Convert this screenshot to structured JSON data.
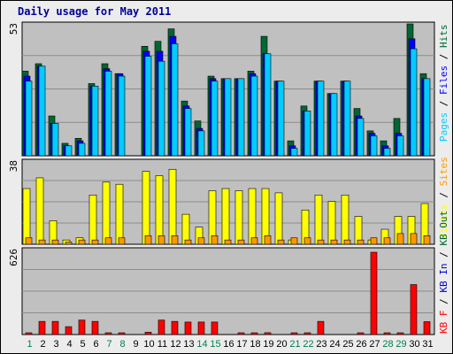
{
  "title": "Daily usage for May 2011",
  "colors": {
    "pages": "#00ccff",
    "files": "#0000ff",
    "hits": "#006633",
    "visits": "#ffff00",
    "sites": "#ff9900",
    "kb_f": "#ff0000",
    "kb_in": "#0000cc",
    "kb_out": "#006633",
    "weekend_day": "#00804d",
    "weekday": "#000000",
    "panel_bg": "#c0c0c0"
  },
  "chart_data": [
    {
      "type": "bar",
      "panel": "top",
      "ymax_label": "53",
      "categories": [
        "1",
        "2",
        "3",
        "4",
        "5",
        "6",
        "7",
        "8",
        "9",
        "10",
        "11",
        "12",
        "13",
        "14",
        "15",
        "16",
        "17",
        "18",
        "19",
        "20",
        "21",
        "22",
        "23",
        "24",
        "25",
        "26",
        "27",
        "28",
        "29",
        "30",
        "31"
      ],
      "series": [
        {
          "name": "Hits",
          "values": [
            34,
            37,
            16,
            5,
            7,
            29,
            37,
            33,
            0,
            44,
            46,
            51,
            22,
            14,
            32,
            31,
            31,
            34,
            48,
            30,
            6,
            20,
            30,
            25,
            30,
            19,
            10,
            6,
            15,
            53,
            33
          ]
        },
        {
          "name": "Files",
          "values": [
            32,
            36,
            13,
            4,
            6,
            28,
            35,
            33,
            0,
            42,
            42,
            48,
            20,
            11,
            31,
            31,
            31,
            33,
            41,
            30,
            4,
            18,
            30,
            25,
            30,
            16,
            9,
            4,
            9,
            47,
            31
          ]
        },
        {
          "name": "Pages",
          "values": [
            30,
            36,
            13,
            4,
            5,
            28,
            34,
            32,
            0,
            40,
            38,
            45,
            19,
            10,
            30,
            31,
            31,
            32,
            41,
            30,
            3,
            18,
            30,
            25,
            30,
            15,
            8,
            3,
            8,
            43,
            31
          ]
        }
      ],
      "ylabel_parts": [
        "Pages",
        "Files",
        "Hits"
      ]
    },
    {
      "type": "bar",
      "panel": "middle",
      "ymax_label": "38",
      "categories": [
        "1",
        "2",
        "3",
        "4",
        "5",
        "6",
        "7",
        "8",
        "9",
        "10",
        "11",
        "12",
        "13",
        "14",
        "15",
        "16",
        "17",
        "18",
        "19",
        "20",
        "21",
        "22",
        "23",
        "24",
        "25",
        "26",
        "27",
        "28",
        "29",
        "30",
        "31"
      ],
      "series": [
        {
          "name": "Visits",
          "values": [
            26,
            31,
            11,
            2,
            3,
            23,
            29,
            28,
            0,
            34,
            32,
            35,
            14,
            8,
            25,
            26,
            25,
            26,
            26,
            24,
            2,
            16,
            23,
            20,
            23,
            13,
            2,
            7,
            13,
            13,
            19
          ]
        },
        {
          "name": "Sites",
          "values": [
            3,
            2,
            2,
            1,
            2,
            2,
            3,
            3,
            0,
            4,
            4,
            4,
            2,
            3,
            4,
            2,
            2,
            3,
            4,
            2,
            3,
            3,
            2,
            2,
            2,
            2,
            3,
            3,
            5,
            5,
            4
          ]
        }
      ],
      "ylabel_parts": [
        "Visits",
        "Sites"
      ]
    },
    {
      "type": "bar",
      "panel": "bottom",
      "ymax_label": "626",
      "categories": [
        "1",
        "2",
        "3",
        "4",
        "5",
        "6",
        "7",
        "8",
        "9",
        "10",
        "11",
        "12",
        "13",
        "14",
        "15",
        "16",
        "17",
        "18",
        "19",
        "20",
        "21",
        "22",
        "23",
        "24",
        "25",
        "26",
        "27",
        "28",
        "29",
        "30",
        "31"
      ],
      "series": [
        {
          "name": "KB F",
          "values": [
            12,
            100,
            100,
            60,
            110,
            100,
            10,
            8,
            0,
            18,
            110,
            100,
            95,
            95,
            95,
            0,
            6,
            10,
            14,
            0,
            6,
            6,
            100,
            0,
            0,
            6,
            626,
            10,
            12,
            380,
            98
          ]
        }
      ],
      "ylabel_parts": [
        "KB Out",
        "KB In",
        "KB F"
      ]
    }
  ],
  "x_days": [
    "1",
    "2",
    "3",
    "4",
    "5",
    "6",
    "7",
    "8",
    "9",
    "10",
    "11",
    "12",
    "13",
    "14",
    "15",
    "16",
    "17",
    "18",
    "19",
    "20",
    "21",
    "22",
    "23",
    "24",
    "25",
    "26",
    "27",
    "28",
    "29",
    "30",
    "31"
  ],
  "weekend_days": [
    "1",
    "7",
    "8",
    "14",
    "15",
    "21",
    "22",
    "28",
    "29"
  ]
}
